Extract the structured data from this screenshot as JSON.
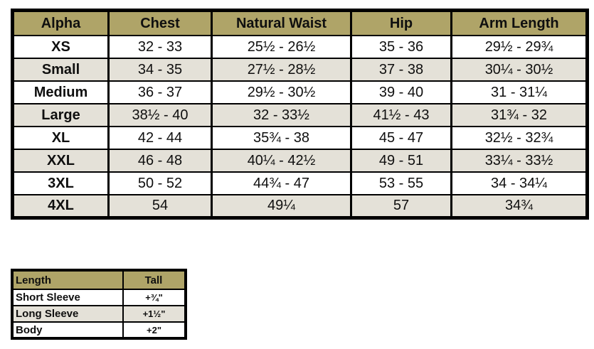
{
  "colors": {
    "header_bg": "#afa468",
    "stripe_bg": "#e4e1d8",
    "row_bg": "#ffffff",
    "border": "#000000",
    "text": "#0f0f0f"
  },
  "chart_data": [
    {
      "type": "table",
      "title": "Alpha size measurement chart",
      "columns": [
        "Alpha",
        "Chest",
        "Natural Waist",
        "Hip",
        "Arm Length"
      ],
      "rows": [
        [
          "XS",
          "32 - 33",
          "25½ - 26½",
          "35 - 36",
          "29½ - 29¾"
        ],
        [
          "Small",
          "34 - 35",
          "27½ - 28½",
          "37 - 38",
          "30¼ - 30½"
        ],
        [
          "Medium",
          "36 - 37",
          "29½ - 30½",
          "39 - 40",
          "31 - 31¼"
        ],
        [
          "Large",
          "38½ - 40",
          "32 - 33½",
          "41½ - 43",
          "31¾ - 32"
        ],
        [
          "XL",
          "42 - 44",
          "35¾ - 38",
          "45 - 47",
          "32½ - 32¾"
        ],
        [
          "XXL",
          "46 - 48",
          "40¼ - 42½",
          "49 - 51",
          "33¼ - 33½"
        ],
        [
          "3XL",
          "50 - 52",
          "44¾ - 47",
          "53 - 55",
          "34 - 34¼"
        ],
        [
          "4XL",
          "54",
          "49¼",
          "57",
          "34¾"
        ]
      ],
      "header_row_striped": false,
      "striped_rows": [
        "Small",
        "Large",
        "XXL",
        "4XL"
      ]
    },
    {
      "type": "table",
      "title": "Length adjustment chart",
      "columns": [
        "Length",
        "Tall"
      ],
      "rows": [
        [
          "Short Sleeve",
          "+¾\""
        ],
        [
          "Long Sleeve",
          "+1½\""
        ],
        [
          "Body",
          "+2\""
        ]
      ],
      "striped_rows": [
        "Long Sleeve"
      ]
    }
  ]
}
